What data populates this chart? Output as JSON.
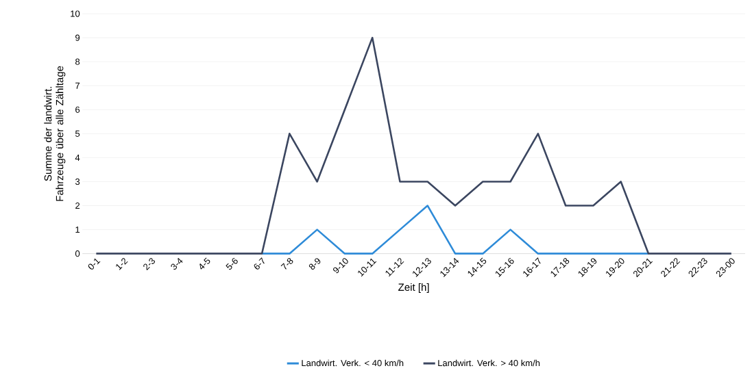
{
  "chart_data": {
    "type": "line",
    "xlabel": "Zeit [h]",
    "ylabel": "Summe der landwirt. Fahrzeuge über alle Zähltage",
    "categories": [
      "0-1",
      "1-2",
      "2-3",
      "3-4",
      "4-5",
      "5-6",
      "6-7",
      "7-8",
      "8-9",
      "9-10",
      "10-11",
      "11-12",
      "12-13",
      "13-14",
      "14-15",
      "15-16",
      "16-17",
      "17-18",
      "18-19",
      "19-20",
      "20-21",
      "21-22",
      "22-23",
      "23-00"
    ],
    "series": [
      {
        "name": "Landwirt. Verk. < 40 km/h",
        "color": "#2e8bd8",
        "values": [
          null,
          null,
          null,
          null,
          null,
          null,
          0,
          0,
          1,
          0,
          0,
          1,
          2,
          0,
          0,
          1,
          0,
          0,
          0,
          0,
          0,
          null,
          null,
          null
        ]
      },
      {
        "name": "Landwirt. Verk. > 40 km/h",
        "color": "#3b4660",
        "values": [
          0,
          0,
          0,
          0,
          0,
          0,
          0,
          5,
          3,
          6,
          9,
          3,
          3,
          2,
          3,
          3,
          5,
          2,
          2,
          3,
          0,
          0,
          0,
          0
        ]
      }
    ],
    "ylim": [
      0,
      10
    ],
    "yticks": [
      0,
      1,
      2,
      3,
      4,
      5,
      6,
      7,
      8,
      9,
      10
    ],
    "grid": "y",
    "legend": "bottom",
    "marker": "none",
    "line_style": "solid"
  }
}
